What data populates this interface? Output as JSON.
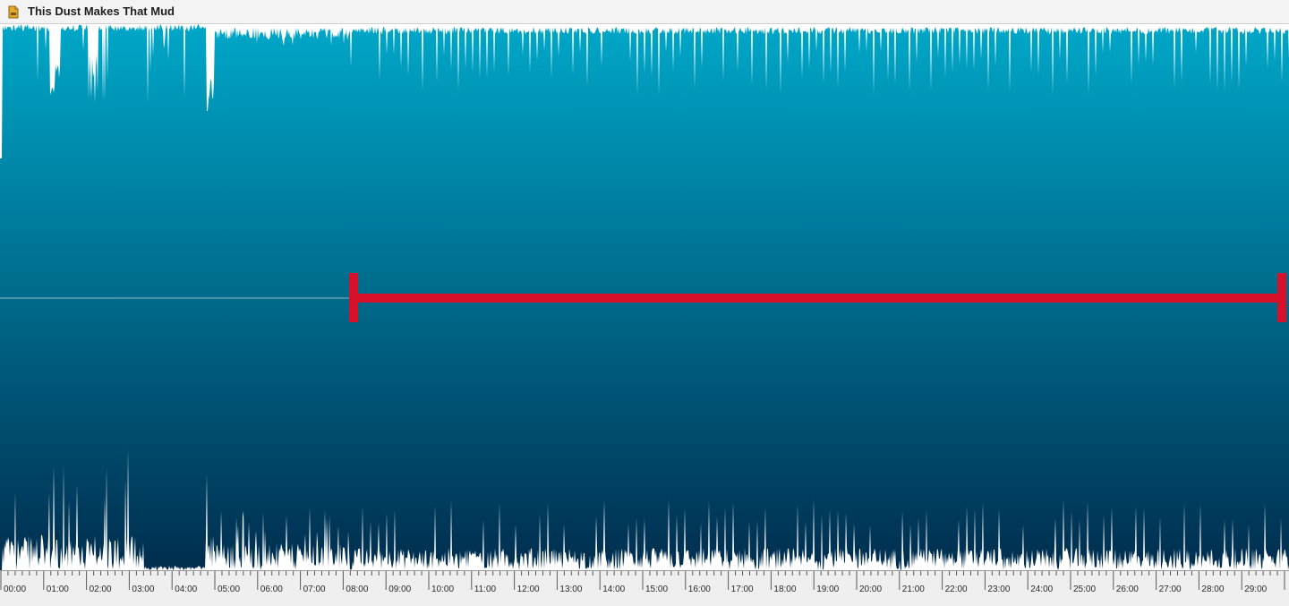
{
  "window": {
    "title": "This Dust Makes That Mud",
    "icon": "audio-file-icon"
  },
  "timeline": {
    "labels": [
      "00:00",
      "01:00",
      "02:00",
      "03:00",
      "04:00",
      "05:00",
      "06:00",
      "07:00",
      "08:00",
      "09:00",
      "10:00",
      "11:00",
      "12:00",
      "13:00",
      "14:00",
      "15:00",
      "16:00",
      "17:00",
      "18:00",
      "19:00",
      "20:00",
      "21:00",
      "22:00",
      "23:00",
      "24:00",
      "25:00",
      "26:00",
      "27:00",
      "28:00",
      "29:00"
    ]
  },
  "annotation": {
    "color": "#d8102a",
    "range_start": "07:56",
    "range_end": "30:00"
  },
  "colors": {
    "wave_top": "#00a7c8",
    "wave_bottom": "#002d4e",
    "background": "#ffffff"
  }
}
